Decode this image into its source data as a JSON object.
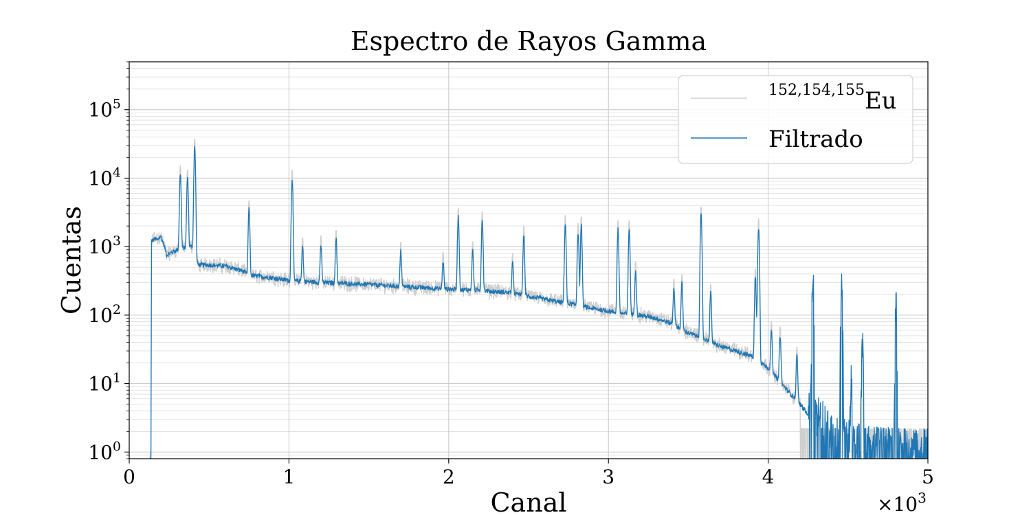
{
  "chart_data": {
    "type": "line",
    "title": "Espectro de Rayos Gamma",
    "xlabel": "Canal",
    "ylabel": "Cuentas",
    "x_multiplier_label": "×10",
    "x_multiplier_exp": "3",
    "xlim": [
      0,
      5000
    ],
    "ylim": [
      0.8,
      500000
    ],
    "yscale": "log",
    "grid": true,
    "legend_position": "top-right",
    "x_ticks": [
      {
        "value": 0,
        "label": "0"
      },
      {
        "value": 1000,
        "label": "1"
      },
      {
        "value": 2000,
        "label": "2"
      },
      {
        "value": 3000,
        "label": "3"
      },
      {
        "value": 4000,
        "label": "4"
      },
      {
        "value": 5000,
        "label": "5"
      }
    ],
    "y_ticks": [
      {
        "value": 1,
        "base": "10",
        "exp": "0"
      },
      {
        "value": 10,
        "base": "10",
        "exp": "1"
      },
      {
        "value": 100,
        "base": "10",
        "exp": "2"
      },
      {
        "value": 1000,
        "base": "10",
        "exp": "3"
      },
      {
        "value": 10000,
        "base": "10",
        "exp": "4"
      },
      {
        "value": 100000,
        "base": "10",
        "exp": "5"
      }
    ],
    "series": [
      {
        "name": "Eu",
        "name_sup": "152,154,155",
        "color": "#cfcfcf",
        "role": "raw"
      },
      {
        "name": "Filtrado",
        "color": "#1f77b4",
        "role": "filtered"
      }
    ],
    "baseline": [
      [
        135,
        0.8
      ],
      [
        140,
        1200
      ],
      [
        160,
        1300
      ],
      [
        180,
        1250
      ],
      [
        195,
        1450
      ],
      [
        215,
        1100
      ],
      [
        235,
        750
      ],
      [
        255,
        800
      ],
      [
        300,
        900
      ],
      [
        380,
        1000
      ],
      [
        410,
        1000
      ],
      [
        430,
        540
      ],
      [
        500,
        540
      ],
      [
        600,
        520
      ],
      [
        700,
        450
      ],
      [
        760,
        380
      ],
      [
        900,
        350
      ],
      [
        1000,
        320
      ],
      [
        1200,
        300
      ],
      [
        1500,
        280
      ],
      [
        1800,
        255
      ],
      [
        2000,
        240
      ],
      [
        2200,
        230
      ],
      [
        2400,
        210
      ],
      [
        2600,
        170
      ],
      [
        2800,
        140
      ],
      [
        2900,
        125
      ],
      [
        3000,
        115
      ],
      [
        3100,
        105
      ],
      [
        3200,
        100
      ],
      [
        3300,
        90
      ],
      [
        3400,
        75
      ],
      [
        3500,
        55
      ],
      [
        3600,
        45
      ],
      [
        3700,
        35
      ],
      [
        3800,
        30
      ],
      [
        3900,
        25
      ],
      [
        4000,
        17
      ],
      [
        4100,
        9
      ],
      [
        4200,
        5
      ],
      [
        4300,
        2.5
      ],
      [
        4400,
        1.6
      ],
      [
        4500,
        1.1
      ],
      [
        4600,
        0.9
      ],
      [
        4800,
        0.8
      ],
      [
        5000,
        0.8
      ]
    ],
    "peaks": [
      {
        "channel": 320,
        "counts": 10500
      },
      {
        "channel": 365,
        "counts": 9000
      },
      {
        "channel": 410,
        "counts": 27000
      },
      {
        "channel": 750,
        "counts": 3100
      },
      {
        "channel": 1020,
        "counts": 9500
      },
      {
        "channel": 1085,
        "counts": 700
      },
      {
        "channel": 1200,
        "counts": 780
      },
      {
        "channel": 1295,
        "counts": 1000
      },
      {
        "channel": 1700,
        "counts": 600
      },
      {
        "channel": 1965,
        "counts": 380
      },
      {
        "channel": 2060,
        "counts": 2500
      },
      {
        "channel": 2150,
        "counts": 650
      },
      {
        "channel": 2210,
        "counts": 2200
      },
      {
        "channel": 2400,
        "counts": 380
      },
      {
        "channel": 2470,
        "counts": 1300
      },
      {
        "channel": 2730,
        "counts": 2000
      },
      {
        "channel": 2810,
        "counts": 1500
      },
      {
        "channel": 2830,
        "counts": 1900
      },
      {
        "channel": 3060,
        "counts": 1700
      },
      {
        "channel": 3130,
        "counts": 1700
      },
      {
        "channel": 3170,
        "counts": 350
      },
      {
        "channel": 3410,
        "counts": 180
      },
      {
        "channel": 3460,
        "counts": 230
      },
      {
        "channel": 3580,
        "counts": 2800
      },
      {
        "channel": 3640,
        "counts": 170
      },
      {
        "channel": 3920,
        "counts": 330
      },
      {
        "channel": 3940,
        "counts": 1900
      },
      {
        "channel": 4020,
        "counts": 45
      },
      {
        "channel": 4075,
        "counts": 40
      },
      {
        "channel": 4180,
        "counts": 20
      },
      {
        "channel": 4280,
        "counts": 250
      },
      {
        "channel": 4460,
        "counts": 210
      },
      {
        "channel": 4520,
        "counts": 6
      },
      {
        "channel": 4590,
        "counts": 23
      },
      {
        "channel": 4800,
        "counts": 90
      }
    ]
  }
}
